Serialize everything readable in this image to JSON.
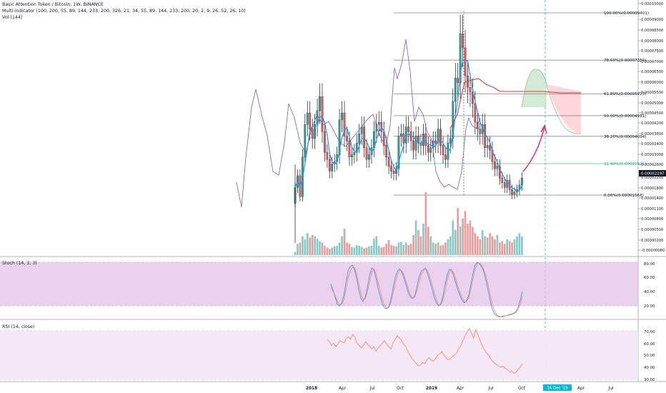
{
  "header": {
    "symbol_line": "Basic Attention Token / Bitcoin, 1W, BINANCE",
    "indicator_line": "Multi-indicator (100, 200, 55, 89, 144, 233, 200, 326, 21, 34, 55, 89, 144, 233, 200, 20, 2, 9, 26, 52, 26, 10)",
    "volume_line": "Vol (144)"
  },
  "colors": {
    "up": "#26a69a",
    "down": "#ef5350",
    "ema_blue": "#2196f3",
    "ma_purple": "#7e57c2",
    "red_line": "#e53935",
    "green_fill": "#c8e6c9",
    "red_fill": "#ffcdd2",
    "stoch_band": "#e1bee7",
    "rsi_band": "#f3e5f5",
    "rsi_line": "#ff7f50",
    "arrow": "#e91e63",
    "cursor": "#00bcd4"
  },
  "chart_data": [
    {
      "type": "candlestick",
      "title": "Basic Attention Token / Bitcoin, 1W, BINANCE",
      "y_axis_ticks": [
        "0.00010000",
        "0.00009000",
        "0.00008500",
        "0.00008000",
        "0.00007500",
        "0.00007000",
        "0.00006500",
        "0.00006000",
        "0.00005500",
        "0.00005000",
        "0.00004500",
        "0.00004200",
        "0.00003800",
        "0.00003400",
        "0.00003000",
        "0.00002600",
        "0.00002200",
        "0.00001800",
        "0.00001400",
        "0.00001100",
        "0.00000800",
        "0.00000500",
        "0.00000200",
        "-0.00000080"
      ],
      "x_axis_ticks": [
        "2018",
        "Apr",
        "Jul",
        "Oct",
        "2019",
        "Apr",
        "Jul",
        "Oct",
        "16 Dec '19",
        "Apr",
        "Jul"
      ],
      "last_price_label": "0.00002297",
      "fib_levels": [
        {
          "label": "100.00%(0.00009401)",
          "price": 9.401e-05
        },
        {
          "label": "78.60%(0.00007369)",
          "price": 7.369e-05
        },
        {
          "label": "61.80%(0.00005923)",
          "price": 5.923e-05
        },
        {
          "label": "50.00%(0.00004981)",
          "price": 4.981e-05
        },
        {
          "label": "38.20%(0.00004094)",
          "price": 4.094e-05
        },
        {
          "label": "21.40%(0.00002921)",
          "price": 2.921e-05
        },
        {
          "label": "0.00%(0.00001568)",
          "price": 1.568e-05
        }
      ],
      "close": [
        1.9,
        2.4,
        1.5,
        3.2,
        4.6,
        5.1,
        4.4,
        4.0,
        4.6,
        5.2,
        5.8,
        4.3,
        3.4,
        3.1,
        2.6,
        2.9,
        3.0,
        3.3,
        4.8,
        5.1,
        4.1,
        3.9,
        3.2,
        3.3,
        3.4,
        3.8,
        4.2,
        4.5,
        3.6,
        3.1,
        3.3,
        3.6,
        4.3,
        4.6,
        4.7,
        4.3,
        3.7,
        3.2,
        2.8,
        2.6,
        2.5,
        2.7,
        4.1,
        4.2,
        3.8,
        4.5,
        4.3,
        3.9,
        3.5,
        4.1,
        3.8,
        3.7,
        4.2,
        3.7,
        3.4,
        3.6,
        3.9,
        3.8,
        4.4,
        3.7,
        3.3,
        3.1,
        3.8,
        4.0,
        5.6,
        6.6,
        6.4,
        8.5,
        7.9,
        6.7,
        6.2,
        6.0,
        5.5,
        4.7,
        4.4,
        4.2,
        4.6,
        3.6,
        3.7,
        3.5,
        3.0,
        2.7,
        2.8,
        2.3,
        2.1,
        1.9,
        2.2,
        1.8,
        1.6,
        1.7,
        1.8,
        2.0,
        2.3
      ],
      "volume_rel": [
        0.05,
        0.18,
        0.2,
        0.3,
        0.25,
        0.35,
        0.28,
        0.32,
        0.3,
        0.26,
        0.22,
        0.2,
        0.15,
        0.12,
        0.1,
        0.12,
        0.14,
        0.15,
        0.2,
        0.3,
        0.42,
        0.2,
        0.18,
        0.13,
        0.12,
        0.16,
        0.15,
        0.13,
        0.11,
        0.12,
        0.14,
        0.15,
        0.26,
        0.3,
        0.15,
        0.12,
        0.13,
        0.18,
        0.24,
        0.16,
        0.15,
        0.14,
        0.2,
        0.21,
        0.16,
        0.2,
        0.16,
        0.18,
        0.32,
        0.55,
        0.4,
        0.3,
        0.5,
        1.0,
        0.45,
        0.3,
        0.2,
        0.18,
        0.2,
        0.15,
        0.16,
        0.2,
        0.25,
        0.3,
        0.55,
        0.4,
        0.75,
        0.46,
        0.58,
        0.7,
        0.5,
        0.55,
        0.45,
        0.35,
        0.3,
        0.25,
        0.4,
        0.3,
        0.28,
        0.35,
        0.3,
        0.25,
        0.32,
        0.2,
        0.22,
        0.18,
        0.25,
        0.22,
        0.2,
        0.25,
        0.3,
        0.35,
        0.3
      ]
    },
    {
      "type": "line",
      "title": "Stoch (14, 3, 3)",
      "y_axis_ticks": [
        "80.00",
        "60.00",
        "40.00",
        "20.00"
      ],
      "ylim": [
        0,
        100
      ],
      "series": [
        {
          "values": [
            50,
            42,
            32,
            22,
            20,
            24,
            34,
            52,
            68,
            74,
            76,
            70,
            58,
            42,
            30,
            26,
            32,
            46,
            62,
            72,
            70,
            58,
            44,
            32,
            22,
            17,
            16,
            20,
            30,
            46,
            60,
            68,
            71,
            66,
            58,
            48,
            38,
            32,
            30,
            34,
            46,
            60,
            68,
            70,
            72,
            64,
            54,
            44,
            32,
            24,
            20,
            22,
            32,
            48,
            62,
            70,
            70,
            62,
            52,
            42,
            34,
            28,
            24,
            27,
            34,
            48,
            64,
            76,
            80,
            78,
            74,
            68,
            56,
            42,
            28,
            16,
            9,
            6,
            5,
            5,
            6,
            6,
            7,
            8,
            9,
            10,
            12,
            18,
            28,
            40
          ]
        },
        {
          "values": [
            46,
            40,
            34,
            26,
            22,
            22,
            28,
            42,
            58,
            68,
            73,
            72,
            64,
            50,
            37,
            29,
            30,
            39,
            53,
            66,
            71,
            64,
            52,
            40,
            28,
            20,
            17,
            18,
            25,
            38,
            52,
            63,
            69,
            68,
            62,
            53,
            43,
            35,
            31,
            32,
            40,
            52,
            63,
            68,
            71,
            68,
            60,
            50,
            39,
            29,
            22,
            21,
            27,
            39,
            54,
            65,
            70,
            66,
            57,
            47,
            38,
            31,
            26,
            26,
            30,
            41,
            56,
            70,
            78,
            79,
            76,
            70,
            62,
            50,
            36,
            23,
            13,
            8,
            6,
            5,
            5,
            6,
            7,
            7,
            8,
            9,
            11,
            15,
            22,
            33
          ]
        }
      ]
    },
    {
      "type": "line",
      "title": "RSI (14, close)",
      "y_axis_ticks": [
        "70.00",
        "60.00",
        "50.00",
        "40.00",
        "30.00"
      ],
      "ylim": [
        27,
        75
      ],
      "series": [
        {
          "values": [
            63,
            61,
            58,
            60,
            57,
            59,
            62,
            61,
            60,
            64,
            65,
            63,
            67,
            65,
            60,
            58,
            56,
            58,
            61,
            59,
            57,
            55,
            57,
            53,
            56,
            58,
            60,
            62,
            59,
            57,
            55,
            60,
            63,
            66,
            64,
            62,
            59,
            57,
            53,
            50,
            47,
            45,
            43,
            41,
            42,
            44,
            43,
            46,
            48,
            46,
            45,
            47,
            50,
            51,
            53,
            50,
            48,
            46,
            47,
            49,
            50,
            52,
            55,
            58,
            62,
            66,
            69,
            72,
            68,
            64,
            71,
            67,
            62,
            58,
            55,
            52,
            50,
            47,
            45,
            43,
            42,
            41,
            40,
            41,
            39,
            38,
            36,
            37,
            35,
            36,
            38,
            40,
            43
          ]
        }
      ]
    }
  ]
}
